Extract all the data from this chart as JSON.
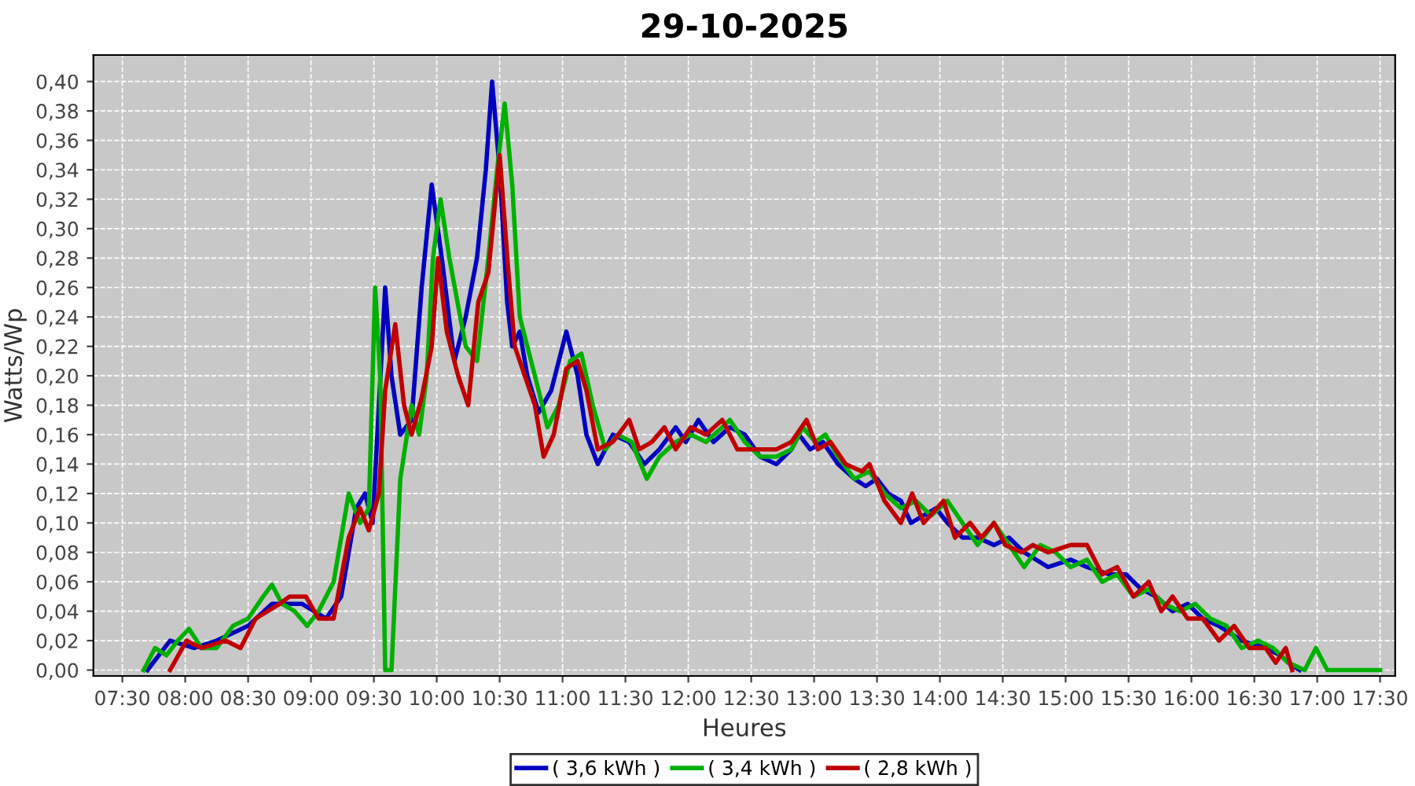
{
  "chart_data": {
    "type": "line",
    "title": "29-10-2025",
    "xlabel": "Heures",
    "ylabel": "Watts/Wp",
    "xlim": [
      7.27,
      17.62
    ],
    "ylim": [
      -0.004,
      0.418
    ],
    "xticks": [
      {
        "value": 7.5,
        "label": "07:30"
      },
      {
        "value": 8,
        "label": "08:00"
      },
      {
        "value": 8.5,
        "label": "08:30"
      },
      {
        "value": 9,
        "label": "09:00"
      },
      {
        "value": 9.5,
        "label": "09:30"
      },
      {
        "value": 10,
        "label": "10:00"
      },
      {
        "value": 10.5,
        "label": "10:30"
      },
      {
        "value": 11,
        "label": "11:00"
      },
      {
        "value": 11.5,
        "label": "11:30"
      },
      {
        "value": 12,
        "label": "12:00"
      },
      {
        "value": 12.5,
        "label": "12:30"
      },
      {
        "value": 13,
        "label": "13:00"
      },
      {
        "value": 13.5,
        "label": "13:30"
      },
      {
        "value": 14,
        "label": "14:00"
      },
      {
        "value": 14.5,
        "label": "14:30"
      },
      {
        "value": 15,
        "label": "15:00"
      },
      {
        "value": 15.5,
        "label": "15:30"
      },
      {
        "value": 16,
        "label": "16:00"
      },
      {
        "value": 16.5,
        "label": "16:30"
      },
      {
        "value": 17,
        "label": "17:00"
      },
      {
        "value": 17.5,
        "label": "17:30"
      }
    ],
    "yticks": [
      {
        "value": 0,
        "label": "0,00"
      },
      {
        "value": 0.02,
        "label": "0,02"
      },
      {
        "value": 0.04,
        "label": "0,04"
      },
      {
        "value": 0.06,
        "label": "0,06"
      },
      {
        "value": 0.08,
        "label": "0,08"
      },
      {
        "value": 0.1,
        "label": "0,10"
      },
      {
        "value": 0.12,
        "label": "0,12"
      },
      {
        "value": 0.14,
        "label": "0,14"
      },
      {
        "value": 0.16,
        "label": "0,16"
      },
      {
        "value": 0.18,
        "label": "0,18"
      },
      {
        "value": 0.2,
        "label": "0,20"
      },
      {
        "value": 0.22,
        "label": "0,22"
      },
      {
        "value": 0.24,
        "label": "0,24"
      },
      {
        "value": 0.26,
        "label": "0,26"
      },
      {
        "value": 0.28,
        "label": "0,28"
      },
      {
        "value": 0.3,
        "label": "0,30"
      },
      {
        "value": 0.32,
        "label": "0,32"
      },
      {
        "value": 0.34,
        "label": "0,34"
      },
      {
        "value": 0.36,
        "label": "0,36"
      },
      {
        "value": 0.38,
        "label": "0,38"
      },
      {
        "value": 0.4,
        "label": "0,40"
      }
    ],
    "grid": true,
    "legend": "bottom",
    "marker": "none",
    "line_style": "solid",
    "series": [
      {
        "name": "( 3,6 kWh )",
        "color": "#0000c0",
        "x": [
          7.7,
          7.88,
          8.07,
          8.25,
          8.5,
          8.69,
          8.93,
          9.12,
          9.24,
          9.36,
          9.43,
          9.49,
          9.59,
          9.64,
          9.71,
          9.8,
          9.88,
          9.96,
          10.04,
          10.14,
          10.23,
          10.32,
          10.39,
          10.44,
          10.5,
          10.56,
          10.6,
          10.66,
          10.72,
          10.81,
          10.91,
          11.03,
          11.12,
          11.19,
          11.28,
          11.4,
          11.53,
          11.65,
          11.77,
          11.9,
          11.98,
          12.08,
          12.2,
          12.33,
          12.45,
          12.57,
          12.7,
          12.82,
          12.88,
          12.97,
          13.07,
          13.19,
          13.32,
          13.41,
          13.5,
          13.59,
          13.69,
          13.77,
          13.87,
          13.97,
          14.06,
          14.18,
          14.3,
          14.43,
          14.55,
          14.67,
          14.86,
          15.04,
          15.17,
          15.35,
          15.48,
          15.6,
          15.72,
          15.85,
          15.97,
          16.09,
          16.22,
          16.4,
          16.59,
          16.71,
          16.77,
          16.86
        ],
        "values": [
          0,
          0.02,
          0.015,
          0.02,
          0.03,
          0.045,
          0.045,
          0.035,
          0.05,
          0.11,
          0.12,
          0.1,
          0.26,
          0.2,
          0.16,
          0.17,
          0.26,
          0.33,
          0.28,
          0.21,
          0.24,
          0.28,
          0.34,
          0.4,
          0.34,
          0.25,
          0.22,
          0.23,
          0.2,
          0.175,
          0.19,
          0.23,
          0.2,
          0.16,
          0.14,
          0.16,
          0.155,
          0.14,
          0.15,
          0.165,
          0.155,
          0.17,
          0.155,
          0.165,
          0.16,
          0.145,
          0.14,
          0.15,
          0.16,
          0.15,
          0.155,
          0.14,
          0.13,
          0.125,
          0.13,
          0.12,
          0.115,
          0.1,
          0.105,
          0.11,
          0.1,
          0.09,
          0.09,
          0.085,
          0.09,
          0.08,
          0.07,
          0.075,
          0.07,
          0.065,
          0.065,
          0.055,
          0.05,
          0.04,
          0.045,
          0.035,
          0.03,
          0.02,
          0.015,
          0.01,
          0.005,
          0
        ]
      },
      {
        "name": "( 3,4 kWh )",
        "color": "#00b000",
        "x": [
          7.67,
          7.76,
          7.85,
          7.94,
          8.03,
          8.13,
          8.25,
          8.38,
          8.5,
          8.62,
          8.69,
          8.77,
          8.87,
          8.97,
          9.06,
          9.18,
          9.3,
          9.39,
          9.46,
          9.51,
          9.55,
          9.59,
          9.64,
          9.71,
          9.8,
          9.86,
          9.92,
          9.97,
          10.03,
          10.1,
          10.23,
          10.32,
          10.41,
          10.48,
          10.54,
          10.6,
          10.66,
          10.72,
          10.81,
          10.88,
          10.97,
          11.06,
          11.15,
          11.24,
          11.34,
          11.44,
          11.55,
          11.67,
          11.77,
          11.9,
          12.02,
          12.14,
          12.27,
          12.33,
          12.45,
          12.57,
          12.7,
          12.82,
          12.91,
          13.01,
          13.09,
          13.19,
          13.32,
          13.44,
          13.56,
          13.69,
          13.81,
          13.93,
          14.06,
          14.18,
          14.3,
          14.43,
          14.55,
          14.67,
          14.8,
          14.92,
          15.04,
          15.17,
          15.29,
          15.41,
          15.54,
          15.66,
          15.78,
          15.91,
          16.03,
          16.15,
          16.28,
          16.4,
          16.53,
          16.65,
          16.77,
          16.9,
          16.99,
          17.08,
          17.5
        ],
        "values": [
          0,
          0.015,
          0.01,
          0.02,
          0.028,
          0.015,
          0.015,
          0.03,
          0.035,
          0.05,
          0.058,
          0.045,
          0.04,
          0.03,
          0.04,
          0.06,
          0.12,
          0.1,
          0.11,
          0.26,
          0.2,
          0,
          0,
          0.13,
          0.18,
          0.16,
          0.2,
          0.28,
          0.32,
          0.28,
          0.22,
          0.21,
          0.28,
          0.34,
          0.385,
          0.33,
          0.24,
          0.22,
          0.19,
          0.165,
          0.18,
          0.21,
          0.215,
          0.18,
          0.15,
          0.16,
          0.155,
          0.13,
          0.145,
          0.155,
          0.16,
          0.155,
          0.165,
          0.17,
          0.155,
          0.145,
          0.145,
          0.15,
          0.165,
          0.155,
          0.16,
          0.145,
          0.13,
          0.135,
          0.12,
          0.11,
          0.115,
          0.105,
          0.115,
          0.1,
          0.085,
          0.1,
          0.085,
          0.07,
          0.085,
          0.08,
          0.07,
          0.075,
          0.06,
          0.065,
          0.05,
          0.055,
          0.045,
          0.04,
          0.045,
          0.035,
          0.03,
          0.015,
          0.02,
          0.015,
          0.005,
          0,
          0.015,
          0,
          0
        ]
      },
      {
        "name": "( 2,8 kWh )",
        "color": "#c00000",
        "x": [
          7.88,
          8.01,
          8.13,
          8.32,
          8.44,
          8.56,
          8.75,
          8.83,
          8.96,
          9.06,
          9.18,
          9.3,
          9.39,
          9.46,
          9.54,
          9.59,
          9.67,
          9.74,
          9.8,
          9.88,
          9.96,
          10.01,
          10.08,
          10.17,
          10.25,
          10.33,
          10.41,
          10.5,
          10.57,
          10.62,
          10.7,
          10.78,
          10.85,
          10.93,
          11.03,
          11.12,
          11.19,
          11.28,
          11.4,
          11.53,
          11.61,
          11.71,
          11.81,
          11.9,
          12.02,
          12.14,
          12.27,
          12.39,
          12.54,
          12.7,
          12.82,
          12.94,
          13.03,
          13.13,
          13.25,
          13.38,
          13.44,
          13.56,
          13.69,
          13.78,
          13.87,
          14.03,
          14.12,
          14.24,
          14.33,
          14.43,
          14.52,
          14.65,
          14.74,
          14.86,
          15.04,
          15.17,
          15.29,
          15.41,
          15.54,
          15.66,
          15.76,
          15.85,
          15.97,
          16.09,
          16.22,
          16.34,
          16.46,
          16.59,
          16.67,
          16.75,
          16.8
        ],
        "values": [
          0,
          0.02,
          0.015,
          0.02,
          0.015,
          0.035,
          0.045,
          0.05,
          0.05,
          0.035,
          0.035,
          0.09,
          0.11,
          0.095,
          0.12,
          0.19,
          0.235,
          0.18,
          0.16,
          0.185,
          0.22,
          0.28,
          0.23,
          0.2,
          0.18,
          0.25,
          0.27,
          0.35,
          0.27,
          0.22,
          0.2,
          0.18,
          0.145,
          0.16,
          0.205,
          0.21,
          0.19,
          0.15,
          0.155,
          0.17,
          0.15,
          0.155,
          0.165,
          0.15,
          0.165,
          0.16,
          0.17,
          0.15,
          0.15,
          0.15,
          0.155,
          0.17,
          0.15,
          0.155,
          0.14,
          0.135,
          0.14,
          0.115,
          0.1,
          0.12,
          0.1,
          0.115,
          0.09,
          0.1,
          0.09,
          0.1,
          0.085,
          0.08,
          0.085,
          0.08,
          0.085,
          0.085,
          0.065,
          0.07,
          0.05,
          0.06,
          0.04,
          0.05,
          0.035,
          0.035,
          0.02,
          0.03,
          0.015,
          0.015,
          0.005,
          0.015,
          0
        ]
      }
    ]
  }
}
